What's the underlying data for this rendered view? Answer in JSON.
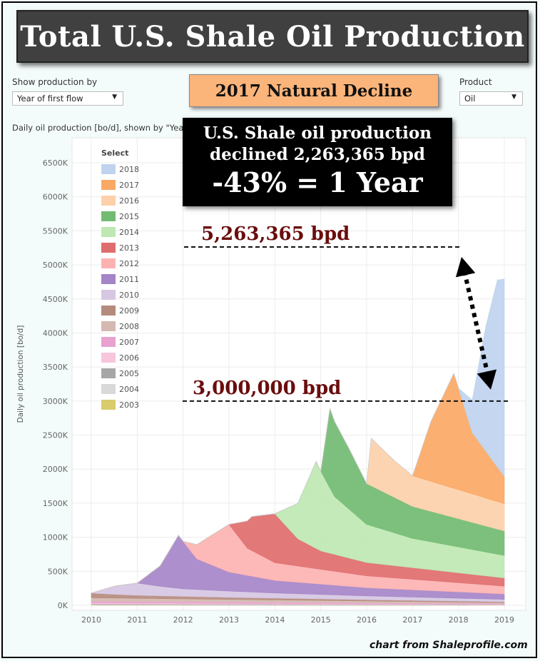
{
  "title": "Total U.S. Shale Oil Production",
  "subtitle": "2017 Natural Decline",
  "controls": {
    "show_by_label": "Show production by",
    "show_by_value": "Year of first flow",
    "product_label": "Product",
    "product_value": "Oil"
  },
  "chart_caption": "Daily oil production [bo/d], shown by \"Yea",
  "callout": {
    "line1": "U.S. Shale oil production",
    "line2": "declined 2,263,365 bpd",
    "line3": "-43% = 1 Year"
  },
  "annotations": {
    "peak_label": "5,263,365 bpd",
    "peak_value": 5263365,
    "trough_label": "3,000,000 bpd",
    "trough_value": 3000000
  },
  "credit": "chart from Shaleprofile.com",
  "chart_data": {
    "type": "area",
    "stacked": true,
    "xlabel": "",
    "ylabel": "Daily oil production [bo/d]",
    "xlim": [
      2010,
      2019
    ],
    "ylim": [
      0,
      6700
    ],
    "y_unit": "K bo/d",
    "x_ticks": [
      "2010",
      "2011",
      "2012",
      "2013",
      "2014",
      "2015",
      "2016",
      "2017",
      "2018",
      "2019"
    ],
    "y_ticks": [
      "0K",
      "500K",
      "1000K",
      "1500K",
      "2000K",
      "2500K",
      "3000K",
      "3500K",
      "4000K",
      "4500K",
      "5000K",
      "5500K",
      "6000K",
      "6500K"
    ],
    "grid": true,
    "legend_title": "Select",
    "legend_position": "top-left",
    "series": [
      {
        "name": "2003",
        "color": "#d8cc6c",
        "points": [
          [
            2010,
            4
          ],
          [
            2019,
            2
          ]
        ]
      },
      {
        "name": "2004",
        "color": "#d9d9d9",
        "points": [
          [
            2010,
            6
          ],
          [
            2019,
            3
          ]
        ]
      },
      {
        "name": "2005",
        "color": "#a6a6a6",
        "points": [
          [
            2010,
            10
          ],
          [
            2019,
            4
          ]
        ]
      },
      {
        "name": "2006",
        "color": "#f7c6dc",
        "points": [
          [
            2010,
            15
          ],
          [
            2019,
            6
          ]
        ]
      },
      {
        "name": "2007",
        "color": "#e9a1d0",
        "points": [
          [
            2010,
            25
          ],
          [
            2019,
            10
          ]
        ]
      },
      {
        "name": "2008",
        "color": "#d4b9b0",
        "points": [
          [
            2010,
            50
          ],
          [
            2019,
            15
          ]
        ]
      },
      {
        "name": "2009",
        "color": "#b58b7d",
        "points": [
          [
            2010,
            70
          ],
          [
            2010.5,
            55
          ],
          [
            2011,
            45
          ],
          [
            2013,
            30
          ],
          [
            2016,
            20
          ],
          [
            2019,
            12
          ]
        ]
      },
      {
        "name": "2010",
        "color": "#d6c7e3",
        "points": [
          [
            2010,
            0
          ],
          [
            2010.5,
            120
          ],
          [
            2011,
            180
          ],
          [
            2011.5,
            140
          ],
          [
            2012,
            110
          ],
          [
            2014,
            75
          ],
          [
            2016,
            55
          ],
          [
            2019,
            35
          ]
        ]
      },
      {
        "name": "2011",
        "color": "#a585c8",
        "points": [
          [
            2011,
            0
          ],
          [
            2011.5,
            300
          ],
          [
            2011.9,
            780
          ],
          [
            2012.3,
            450
          ],
          [
            2013,
            280
          ],
          [
            2014,
            185
          ],
          [
            2016,
            120
          ],
          [
            2019,
            80
          ]
        ]
      },
      {
        "name": "2012",
        "color": "#fdb2b2",
        "points": [
          [
            2012,
            0
          ],
          [
            2012.5,
            350
          ],
          [
            2013,
            700
          ],
          [
            2013.4,
            400
          ],
          [
            2014,
            260
          ],
          [
            2016,
            175
          ],
          [
            2019,
            115
          ]
        ]
      },
      {
        "name": "2013",
        "color": "#df6d6d",
        "points": [
          [
            2013,
            0
          ],
          [
            2013.5,
            500
          ],
          [
            2014,
            720
          ],
          [
            2014.5,
            400
          ],
          [
            2015,
            270
          ],
          [
            2016,
            195
          ],
          [
            2019,
            120
          ]
        ]
      },
      {
        "name": "2014",
        "color": "#bee8b2",
        "points": [
          [
            2014,
            0
          ],
          [
            2014.5,
            520
          ],
          [
            2014.9,
            1280
          ],
          [
            2015.3,
            850
          ],
          [
            2016,
            560
          ],
          [
            2017,
            430
          ],
          [
            2019,
            330
          ]
        ]
      },
      {
        "name": "2015",
        "color": "#72bb72",
        "points": [
          [
            2015,
            0
          ],
          [
            2015.2,
            1170
          ],
          [
            2015.6,
            900
          ],
          [
            2016,
            600
          ],
          [
            2017,
            470
          ],
          [
            2019,
            360
          ]
        ]
      },
      {
        "name": "2016",
        "color": "#fdd0aa",
        "points": [
          [
            2016,
            0
          ],
          [
            2016.1,
            700
          ],
          [
            2016.6,
            540
          ],
          [
            2017,
            450
          ],
          [
            2019,
            400
          ]
        ]
      },
      {
        "name": "2017",
        "color": "#fba865",
        "points": [
          [
            2017,
            0
          ],
          [
            2017.4,
            880
          ],
          [
            2017.9,
            1690
          ],
          [
            2018.3,
            900
          ],
          [
            2019,
            400
          ]
        ]
      },
      {
        "name": "2018",
        "color": "#bfd3ef",
        "points": [
          [
            2018,
            0
          ],
          [
            2018.3,
            480
          ],
          [
            2018.6,
            1850
          ],
          [
            2018.85,
            2750
          ],
          [
            2019,
            2900
          ]
        ]
      }
    ]
  }
}
